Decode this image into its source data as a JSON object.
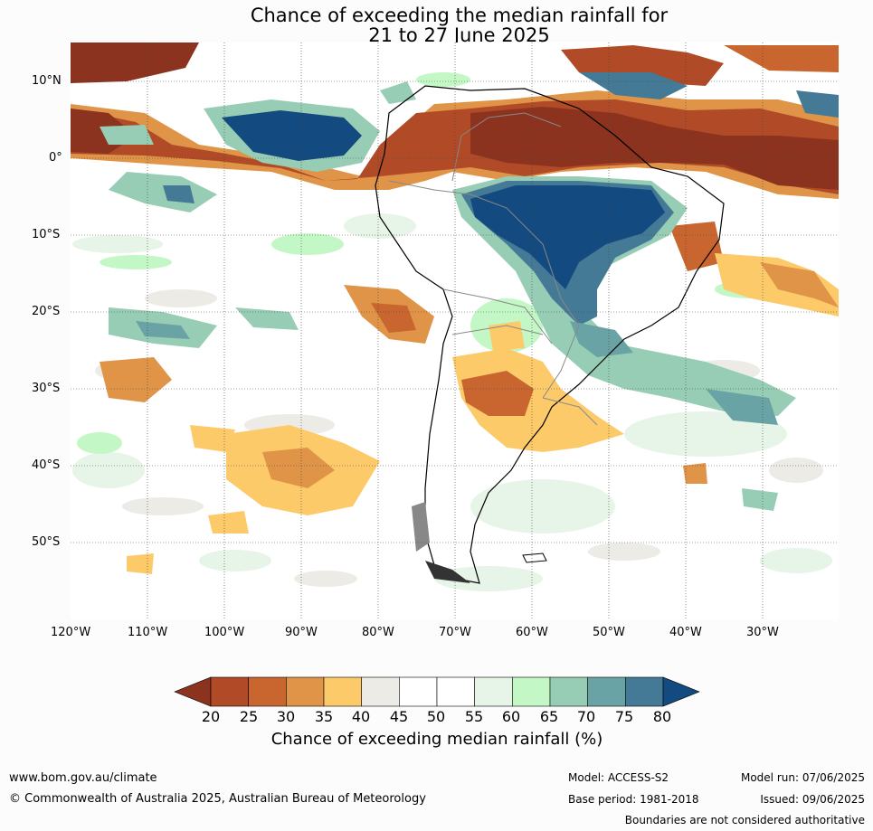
{
  "title": {
    "line1": "Chance of exceeding the median rainfall for",
    "line2": "21 to 27 June 2025"
  },
  "lat_labels": [
    "10°N",
    "0°",
    "10°S",
    "20°S",
    "30°S",
    "40°S",
    "50°S"
  ],
  "lon_labels": [
    "120°W",
    "110°W",
    "100°W",
    "90°W",
    "80°W",
    "70°W",
    "60°W",
    "50°W",
    "40°W",
    "30°W"
  ],
  "colorbar": {
    "label": "Chance of exceeding median rainfall (%)",
    "ticks": [
      "20",
      "25",
      "30",
      "35",
      "40",
      "45",
      "50",
      "55",
      "60",
      "65",
      "70",
      "75",
      "80"
    ],
    "colors": [
      "#8c3320",
      "#b04a27",
      "#c9662f",
      "#e09448",
      "#fdca6a",
      "#edebe6",
      "#ffffff",
      "#ffffff",
      "#e7f4e8",
      "#c4f7c6",
      "#98cdb5",
      "#6aa3a5",
      "#457a96",
      "#134b81"
    ]
  },
  "footer": {
    "website": "www.bom.gov.au/climate",
    "copyright": "© Commonwealth of Australia 2025, Australian Bureau of Meteorology",
    "model": "Model: ACCESS-S2",
    "base_period": "Base period: 1981-2018",
    "model_run": "Model run: 07/06/2025",
    "issued": "Issued: 09/06/2025",
    "disclaimer": "Boundaries are not considered authoritative"
  }
}
